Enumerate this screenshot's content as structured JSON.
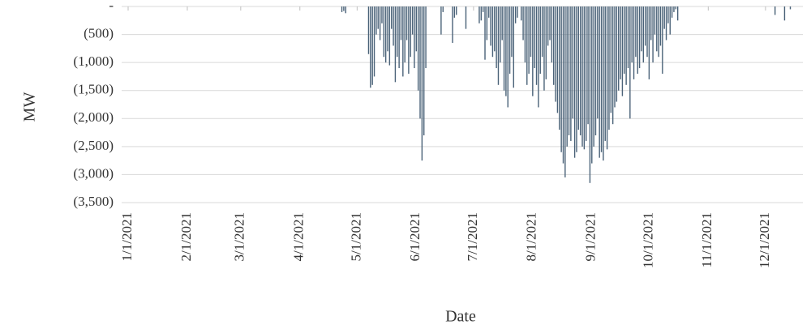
{
  "chart_data": {
    "type": "bar",
    "x_label": "Date",
    "y_label": "MW",
    "color": "#4a6278",
    "grid": true,
    "ylim": [
      -3500,
      0
    ],
    "yticks": [
      {
        "value": 0,
        "label": "-"
      },
      {
        "value": -500,
        "label": "(500)"
      },
      {
        "value": -1000,
        "label": "(1,000)"
      },
      {
        "value": -1500,
        "label": "(1,500)"
      },
      {
        "value": -2000,
        "label": "(2,000)"
      },
      {
        "value": -2500,
        "label": "(2,500)"
      },
      {
        "value": -3000,
        "label": "(3,000)"
      },
      {
        "value": -3500,
        "label": "(3,500)"
      }
    ],
    "categories": [
      "1/1/2021",
      null,
      null,
      null,
      null,
      null,
      null,
      null,
      null,
      null,
      null,
      null,
      null,
      null,
      null,
      null,
      null,
      null,
      null,
      null,
      null,
      null,
      null,
      null,
      null,
      null,
      null,
      null,
      null,
      null,
      null,
      "2/1/2021",
      null,
      null,
      null,
      null,
      null,
      null,
      null,
      null,
      null,
      null,
      null,
      null,
      null,
      null,
      null,
      null,
      null,
      null,
      null,
      null,
      null,
      null,
      null,
      null,
      null,
      null,
      null,
      "3/1/2021",
      null,
      null,
      null,
      null,
      null,
      null,
      null,
      null,
      null,
      null,
      null,
      null,
      null,
      null,
      null,
      null,
      null,
      null,
      null,
      null,
      null,
      null,
      null,
      null,
      null,
      null,
      null,
      null,
      null,
      null,
      "4/1/2021",
      null,
      null,
      null,
      null,
      null,
      null,
      null,
      null,
      null,
      null,
      null,
      null,
      null,
      null,
      null,
      null,
      null,
      null,
      null,
      null,
      null,
      null,
      null,
      null,
      null,
      null,
      null,
      null,
      null,
      "5/1/2021",
      null,
      null,
      null,
      null,
      null,
      null,
      null,
      null,
      null,
      null,
      null,
      null,
      null,
      null,
      null,
      null,
      null,
      null,
      null,
      null,
      null,
      null,
      null,
      null,
      null,
      null,
      null,
      null,
      null,
      null,
      "6/1/2021",
      null,
      null,
      null,
      null,
      null,
      null,
      null,
      null,
      null,
      null,
      null,
      null,
      null,
      null,
      null,
      null,
      null,
      null,
      null,
      null,
      null,
      null,
      null,
      null,
      null,
      null,
      null,
      null,
      null,
      "7/1/2021",
      null,
      null,
      null,
      null,
      null,
      null,
      null,
      null,
      null,
      null,
      null,
      null,
      null,
      null,
      null,
      null,
      null,
      null,
      null,
      null,
      null,
      null,
      null,
      null,
      null,
      null,
      null,
      null,
      null,
      null,
      "8/1/2021",
      null,
      null,
      null,
      null,
      null,
      null,
      null,
      null,
      null,
      null,
      null,
      null,
      null,
      null,
      null,
      null,
      null,
      null,
      null,
      null,
      null,
      null,
      null,
      null,
      null,
      null,
      null,
      null,
      null,
      null,
      "9/1/2021",
      null,
      null,
      null,
      null,
      null,
      null,
      null,
      null,
      null,
      null,
      null,
      null,
      null,
      null,
      null,
      null,
      null,
      null,
      null,
      null,
      null,
      null,
      null,
      null,
      null,
      null,
      null,
      null,
      null,
      "10/1/2021",
      null,
      null,
      null,
      null,
      null,
      null,
      null,
      null,
      null,
      null,
      null,
      null,
      null,
      null,
      null,
      null,
      null,
      null,
      null,
      null,
      null,
      null,
      null,
      null,
      null,
      null,
      null,
      null,
      null,
      null,
      "11/1/2021",
      null,
      null,
      null,
      null,
      null,
      null,
      null,
      null,
      null,
      null,
      null,
      null,
      null,
      null,
      null,
      null,
      null,
      null,
      null,
      null,
      null,
      null,
      null,
      null,
      null,
      null,
      null,
      null,
      null,
      "12/1/2021",
      null,
      null,
      null,
      null,
      null,
      null,
      null,
      null,
      null,
      null,
      null,
      null,
      null,
      null,
      null,
      null,
      null,
      null,
      null,
      null
    ],
    "values": [
      0,
      0,
      0,
      0,
      0,
      0,
      0,
      0,
      0,
      0,
      0,
      0,
      0,
      0,
      0,
      0,
      0,
      0,
      0,
      0,
      0,
      0,
      0,
      0,
      0,
      0,
      0,
      0,
      0,
      0,
      0,
      0,
      0,
      0,
      0,
      0,
      0,
      0,
      0,
      0,
      0,
      0,
      0,
      0,
      0,
      0,
      0,
      0,
      0,
      0,
      0,
      0,
      0,
      0,
      0,
      0,
      0,
      0,
      0,
      0,
      0,
      0,
      0,
      0,
      0,
      0,
      0,
      0,
      0,
      0,
      0,
      0,
      0,
      0,
      0,
      0,
      0,
      0,
      0,
      0,
      0,
      0,
      0,
      0,
      0,
      0,
      0,
      0,
      0,
      0,
      0,
      0,
      0,
      0,
      0,
      0,
      0,
      0,
      0,
      0,
      0,
      0,
      0,
      0,
      0,
      0,
      0,
      0,
      0,
      0,
      0,
      0,
      -100,
      -80,
      -120,
      0,
      0,
      0,
      0,
      0,
      0,
      0,
      0,
      0,
      0,
      0,
      -850,
      -1450,
      -1400,
      -1250,
      -500,
      -400,
      -600,
      -300,
      -900,
      -1000,
      -800,
      -1050,
      -400,
      -700,
      -1350,
      -900,
      -1100,
      -600,
      -1250,
      -1000,
      -600,
      -1200,
      -900,
      -500,
      -1100,
      -800,
      -1500,
      -2000,
      -2750,
      -2300,
      -1100,
      0,
      0,
      0,
      0,
      0,
      0,
      0,
      -500,
      -100,
      0,
      0,
      0,
      0,
      -650,
      -200,
      -150,
      0,
      0,
      0,
      0,
      -400,
      0,
      0,
      0,
      0,
      0,
      0,
      -300,
      -250,
      -100,
      -950,
      -600,
      -200,
      -700,
      -900,
      -800,
      -1100,
      -1400,
      -1000,
      -600,
      -1500,
      -1600,
      -1800,
      -1200,
      -900,
      -1450,
      -300,
      -200,
      0,
      -250,
      -600,
      -1000,
      -1400,
      -1200,
      -900,
      -1600,
      -1100,
      -1400,
      -1800,
      -1200,
      -900,
      -1500,
      -1300,
      -700,
      -600,
      -1000,
      -1400,
      -1700,
      -1900,
      -2200,
      -2600,
      -2800,
      -3050,
      -2500,
      -2300,
      -2400,
      -2000,
      -2700,
      -2600,
      -2200,
      -2300,
      -2500,
      -2550,
      -2400,
      -2100,
      -3150,
      -2800,
      -2500,
      -2300,
      -2000,
      -2700,
      -2600,
      -2750,
      -2400,
      -2550,
      -2200,
      -1900,
      -2100,
      -1800,
      -1700,
      -1500,
      -1300,
      -1600,
      -1200,
      -1400,
      -1100,
      -2000,
      -1000,
      -1300,
      -900,
      -1200,
      -1100,
      -800,
      -1000,
      -700,
      -900,
      -1300,
      -600,
      -1000,
      -500,
      -800,
      -900,
      -700,
      -1200,
      -400,
      -600,
      -300,
      -500,
      -200,
      -100,
      -50,
      -250,
      0,
      0,
      0,
      0,
      0,
      0,
      0,
      0,
      0,
      0,
      0,
      0,
      0,
      0,
      0,
      0,
      0,
      0,
      0,
      0,
      0,
      0,
      0,
      0,
      0,
      0,
      0,
      0,
      0,
      0,
      0,
      0,
      0,
      0,
      0,
      0,
      0,
      0,
      0,
      0,
      0,
      0,
      0,
      0,
      0,
      0,
      0,
      0,
      0,
      0,
      -150,
      0,
      0,
      0,
      0,
      -250,
      0,
      0,
      -50,
      0,
      0,
      0,
      0,
      0,
      0,
      0
    ]
  }
}
